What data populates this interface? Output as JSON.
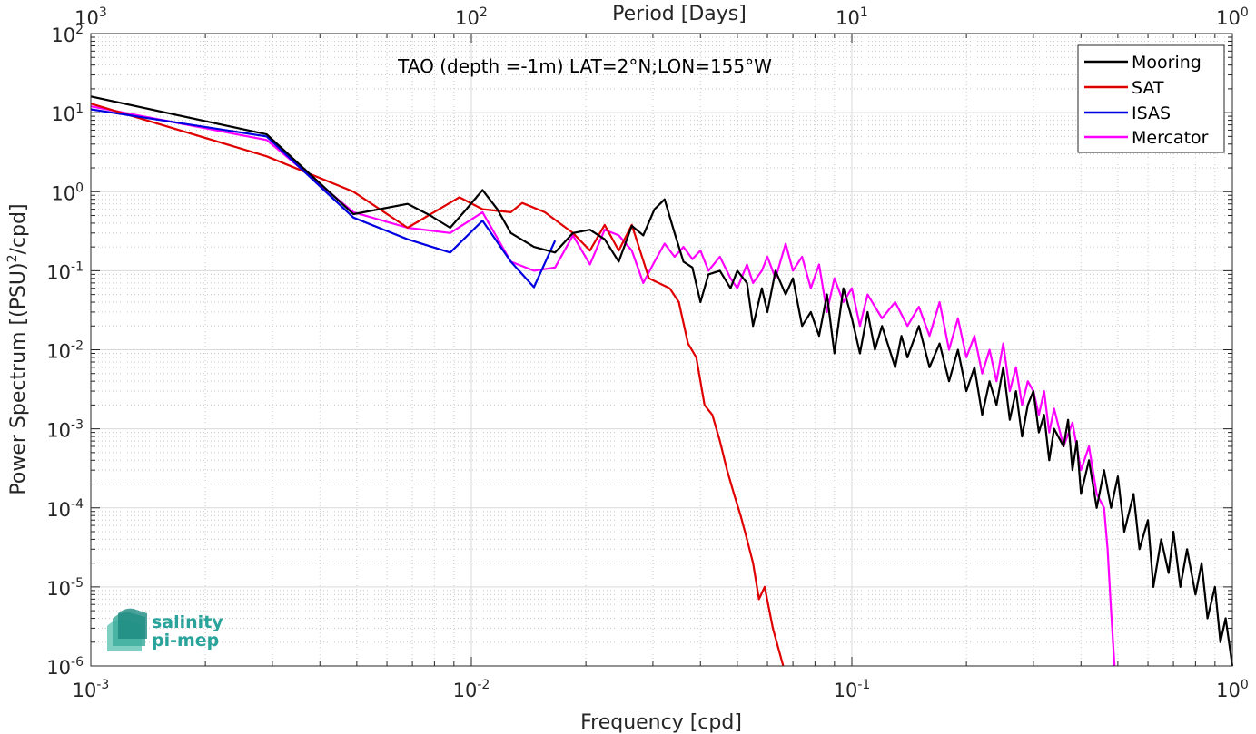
{
  "chart_data": {
    "type": "line",
    "title": "TAO (depth =-1m) LAT=2°N;LON=155°W",
    "xlabel": "Frequency [cpd]",
    "ylabel": "Power Spectrum [(PSU)",
    "ylabel_exp": "2",
    "ylabel_tail": "/cpd]",
    "top_xlabel": "Period [Days]",
    "xscale": "log",
    "yscale": "log",
    "xlim": [
      0.001,
      1
    ],
    "ylim": [
      1e-06,
      100
    ],
    "grid": true,
    "minor_grid": true,
    "legend_position": "top-right",
    "x_ticks": [
      {
        "base": "10",
        "exp": "-3"
      },
      {
        "base": "10",
        "exp": "-2"
      },
      {
        "base": "10",
        "exp": "-1"
      },
      {
        "base": "10",
        "exp": "0"
      }
    ],
    "y_ticks": [
      {
        "base": "10",
        "exp": "-6"
      },
      {
        "base": "10",
        "exp": "-5"
      },
      {
        "base": "10",
        "exp": "-4"
      },
      {
        "base": "10",
        "exp": "-3"
      },
      {
        "base": "10",
        "exp": "-2"
      },
      {
        "base": "10",
        "exp": "-1"
      },
      {
        "base": "10",
        "exp": "0"
      },
      {
        "base": "10",
        "exp": "1"
      },
      {
        "base": "10",
        "exp": "2"
      }
    ],
    "top_ticks": [
      {
        "base": "10",
        "exp": "3"
      },
      {
        "base": "10",
        "exp": "2"
      },
      {
        "base": "10",
        "exp": "1"
      },
      {
        "base": "10",
        "exp": "0"
      }
    ],
    "series": [
      {
        "name": "Mooring",
        "color": "#000000",
        "points": [
          [
            0.001,
            16
          ],
          [
            0.0029,
            5.3
          ],
          [
            0.0049,
            0.52
          ],
          [
            0.0068,
            0.7
          ],
          [
            0.0078,
            0.5
          ],
          [
            0.0088,
            0.35
          ],
          [
            0.0097,
            0.6
          ],
          [
            0.0107,
            1.05
          ],
          [
            0.0117,
            0.6
          ],
          [
            0.0127,
            0.3
          ],
          [
            0.0146,
            0.2
          ],
          [
            0.0166,
            0.17
          ],
          [
            0.0185,
            0.3
          ],
          [
            0.0205,
            0.33
          ],
          [
            0.0224,
            0.25
          ],
          [
            0.0244,
            0.13
          ],
          [
            0.0264,
            0.37
          ],
          [
            0.0283,
            0.28
          ],
          [
            0.0303,
            0.6
          ],
          [
            0.0322,
            0.8
          ],
          [
            0.0342,
            0.3
          ],
          [
            0.0361,
            0.13
          ],
          [
            0.0381,
            0.11
          ],
          [
            0.04,
            0.04
          ],
          [
            0.042,
            0.09
          ],
          [
            0.045,
            0.1
          ],
          [
            0.048,
            0.06
          ],
          [
            0.05,
            0.1
          ],
          [
            0.053,
            0.07
          ],
          [
            0.055,
            0.02
          ],
          [
            0.058,
            0.06
          ],
          [
            0.06,
            0.03
          ],
          [
            0.063,
            0.1
          ],
          [
            0.067,
            0.05
          ],
          [
            0.07,
            0.08
          ],
          [
            0.074,
            0.02
          ],
          [
            0.078,
            0.03
          ],
          [
            0.082,
            0.015
          ],
          [
            0.086,
            0.05
          ],
          [
            0.09,
            0.009
          ],
          [
            0.095,
            0.06
          ],
          [
            0.1,
            0.025
          ],
          [
            0.105,
            0.009
          ],
          [
            0.11,
            0.03
          ],
          [
            0.115,
            0.01
          ],
          [
            0.12,
            0.02
          ],
          [
            0.13,
            0.006
          ],
          [
            0.135,
            0.015
          ],
          [
            0.14,
            0.008
          ],
          [
            0.15,
            0.02
          ],
          [
            0.16,
            0.006
          ],
          [
            0.17,
            0.012
          ],
          [
            0.18,
            0.004
          ],
          [
            0.19,
            0.01
          ],
          [
            0.2,
            0.003
          ],
          [
            0.21,
            0.006
          ],
          [
            0.22,
            0.0015
          ],
          [
            0.23,
            0.004
          ],
          [
            0.24,
            0.002
          ],
          [
            0.25,
            0.006
          ],
          [
            0.26,
            0.0013
          ],
          [
            0.27,
            0.003
          ],
          [
            0.28,
            0.0008
          ],
          [
            0.29,
            0.002
          ],
          [
            0.3,
            0.003
          ],
          [
            0.31,
            0.0009
          ],
          [
            0.32,
            0.0015
          ],
          [
            0.33,
            0.0004
          ],
          [
            0.34,
            0.001
          ],
          [
            0.36,
            0.0006
          ],
          [
            0.37,
            0.0013
          ],
          [
            0.38,
            0.0003
          ],
          [
            0.39,
            0.0007
          ],
          [
            0.4,
            0.00015
          ],
          [
            0.42,
            0.0004
          ],
          [
            0.44,
            0.0001
          ],
          [
            0.46,
            0.0003
          ],
          [
            0.48,
            0.0001
          ],
          [
            0.5,
            0.00025
          ],
          [
            0.52,
            5e-05
          ],
          [
            0.55,
            0.00015
          ],
          [
            0.57,
            3e-05
          ],
          [
            0.6,
            7e-05
          ],
          [
            0.62,
            1e-05
          ],
          [
            0.65,
            4e-05
          ],
          [
            0.68,
            1.5e-05
          ],
          [
            0.7,
            5e-05
          ],
          [
            0.73,
            1e-05
          ],
          [
            0.76,
            3e-05
          ],
          [
            0.8,
            8e-06
          ],
          [
            0.83,
            2e-05
          ],
          [
            0.86,
            4e-06
          ],
          [
            0.9,
            1e-05
          ],
          [
            0.93,
            2e-06
          ],
          [
            0.96,
            4e-06
          ],
          [
            1.0,
            1e-06
          ]
        ]
      },
      {
        "name": "SAT",
        "color": "#e00000",
        "points": [
          [
            0.001,
            13
          ],
          [
            0.0029,
            2.8
          ],
          [
            0.0049,
            1.0
          ],
          [
            0.0068,
            0.35
          ],
          [
            0.0093,
            0.85
          ],
          [
            0.0107,
            0.6
          ],
          [
            0.0127,
            0.55
          ],
          [
            0.0136,
            0.72
          ],
          [
            0.0156,
            0.55
          ],
          [
            0.0185,
            0.3
          ],
          [
            0.0205,
            0.18
          ],
          [
            0.0224,
            0.38
          ],
          [
            0.0244,
            0.18
          ],
          [
            0.0264,
            0.38
          ],
          [
            0.0293,
            0.08
          ],
          [
            0.0332,
            0.06
          ],
          [
            0.0351,
            0.04
          ],
          [
            0.0371,
            0.012
          ],
          [
            0.039,
            0.008
          ],
          [
            0.041,
            0.002
          ],
          [
            0.043,
            0.0015
          ],
          [
            0.045,
            0.0007
          ],
          [
            0.047,
            0.0003
          ],
          [
            0.049,
            0.00015
          ],
          [
            0.051,
            8e-05
          ],
          [
            0.053,
            4e-05
          ],
          [
            0.055,
            2e-05
          ],
          [
            0.057,
            7e-06
          ],
          [
            0.059,
            1e-05
          ],
          [
            0.062,
            3e-06
          ],
          [
            0.066,
            1e-06
          ]
        ]
      },
      {
        "name": "ISAS",
        "color": "#0000e0",
        "points": [
          [
            0.001,
            11
          ],
          [
            0.0029,
            5.0
          ],
          [
            0.0049,
            0.47
          ],
          [
            0.0068,
            0.25
          ],
          [
            0.0088,
            0.17
          ],
          [
            0.0107,
            0.43
          ],
          [
            0.0127,
            0.13
          ],
          [
            0.0146,
            0.062
          ],
          [
            0.0166,
            0.24
          ]
        ]
      },
      {
        "name": "Mercator",
        "color": "#ff00ff",
        "points": [
          [
            0.001,
            12
          ],
          [
            0.0029,
            4.5
          ],
          [
            0.0049,
            0.55
          ],
          [
            0.0068,
            0.35
          ],
          [
            0.0088,
            0.3
          ],
          [
            0.0107,
            0.55
          ],
          [
            0.0127,
            0.13
          ],
          [
            0.0146,
            0.1
          ],
          [
            0.0166,
            0.11
          ],
          [
            0.0185,
            0.28
          ],
          [
            0.0205,
            0.12
          ],
          [
            0.0224,
            0.33
          ],
          [
            0.0244,
            0.28
          ],
          [
            0.0264,
            0.18
          ],
          [
            0.0283,
            0.07
          ],
          [
            0.0303,
            0.13
          ],
          [
            0.0322,
            0.22
          ],
          [
            0.0342,
            0.15
          ],
          [
            0.0361,
            0.2
          ],
          [
            0.0381,
            0.14
          ],
          [
            0.04,
            0.18
          ],
          [
            0.042,
            0.1
          ],
          [
            0.045,
            0.15
          ],
          [
            0.048,
            0.08
          ],
          [
            0.05,
            0.06
          ],
          [
            0.053,
            0.12
          ],
          [
            0.055,
            0.07
          ],
          [
            0.058,
            0.1
          ],
          [
            0.06,
            0.15
          ],
          [
            0.063,
            0.08
          ],
          [
            0.067,
            0.22
          ],
          [
            0.07,
            0.1
          ],
          [
            0.074,
            0.15
          ],
          [
            0.078,
            0.06
          ],
          [
            0.082,
            0.12
          ],
          [
            0.086,
            0.03
          ],
          [
            0.09,
            0.08
          ],
          [
            0.095,
            0.04
          ],
          [
            0.1,
            0.06
          ],
          [
            0.105,
            0.02
          ],
          [
            0.11,
            0.05
          ],
          [
            0.12,
            0.025
          ],
          [
            0.13,
            0.04
          ],
          [
            0.14,
            0.02
          ],
          [
            0.15,
            0.035
          ],
          [
            0.16,
            0.015
          ],
          [
            0.17,
            0.04
          ],
          [
            0.18,
            0.01
          ],
          [
            0.19,
            0.025
          ],
          [
            0.2,
            0.008
          ],
          [
            0.21,
            0.015
          ],
          [
            0.22,
            0.005
          ],
          [
            0.23,
            0.01
          ],
          [
            0.24,
            0.004
          ],
          [
            0.25,
            0.012
          ],
          [
            0.26,
            0.003
          ],
          [
            0.27,
            0.006
          ],
          [
            0.28,
            0.002
          ],
          [
            0.29,
            0.004
          ],
          [
            0.3,
            0.003
          ],
          [
            0.31,
            0.0015
          ],
          [
            0.32,
            0.003
          ],
          [
            0.33,
            0.0009
          ],
          [
            0.34,
            0.0018
          ],
          [
            0.36,
            0.0006
          ],
          [
            0.38,
            0.0012
          ],
          [
            0.4,
            0.0003
          ],
          [
            0.42,
            0.0006
          ],
          [
            0.44,
            0.00015
          ],
          [
            0.46,
            0.0001
          ],
          [
            0.47,
            3e-05
          ],
          [
            0.48,
            5e-06
          ],
          [
            0.49,
            1e-06
          ]
        ]
      }
    ]
  },
  "logo": {
    "line1": "salinity",
    "line2": "pi-mep",
    "color": "#2aa39a"
  }
}
